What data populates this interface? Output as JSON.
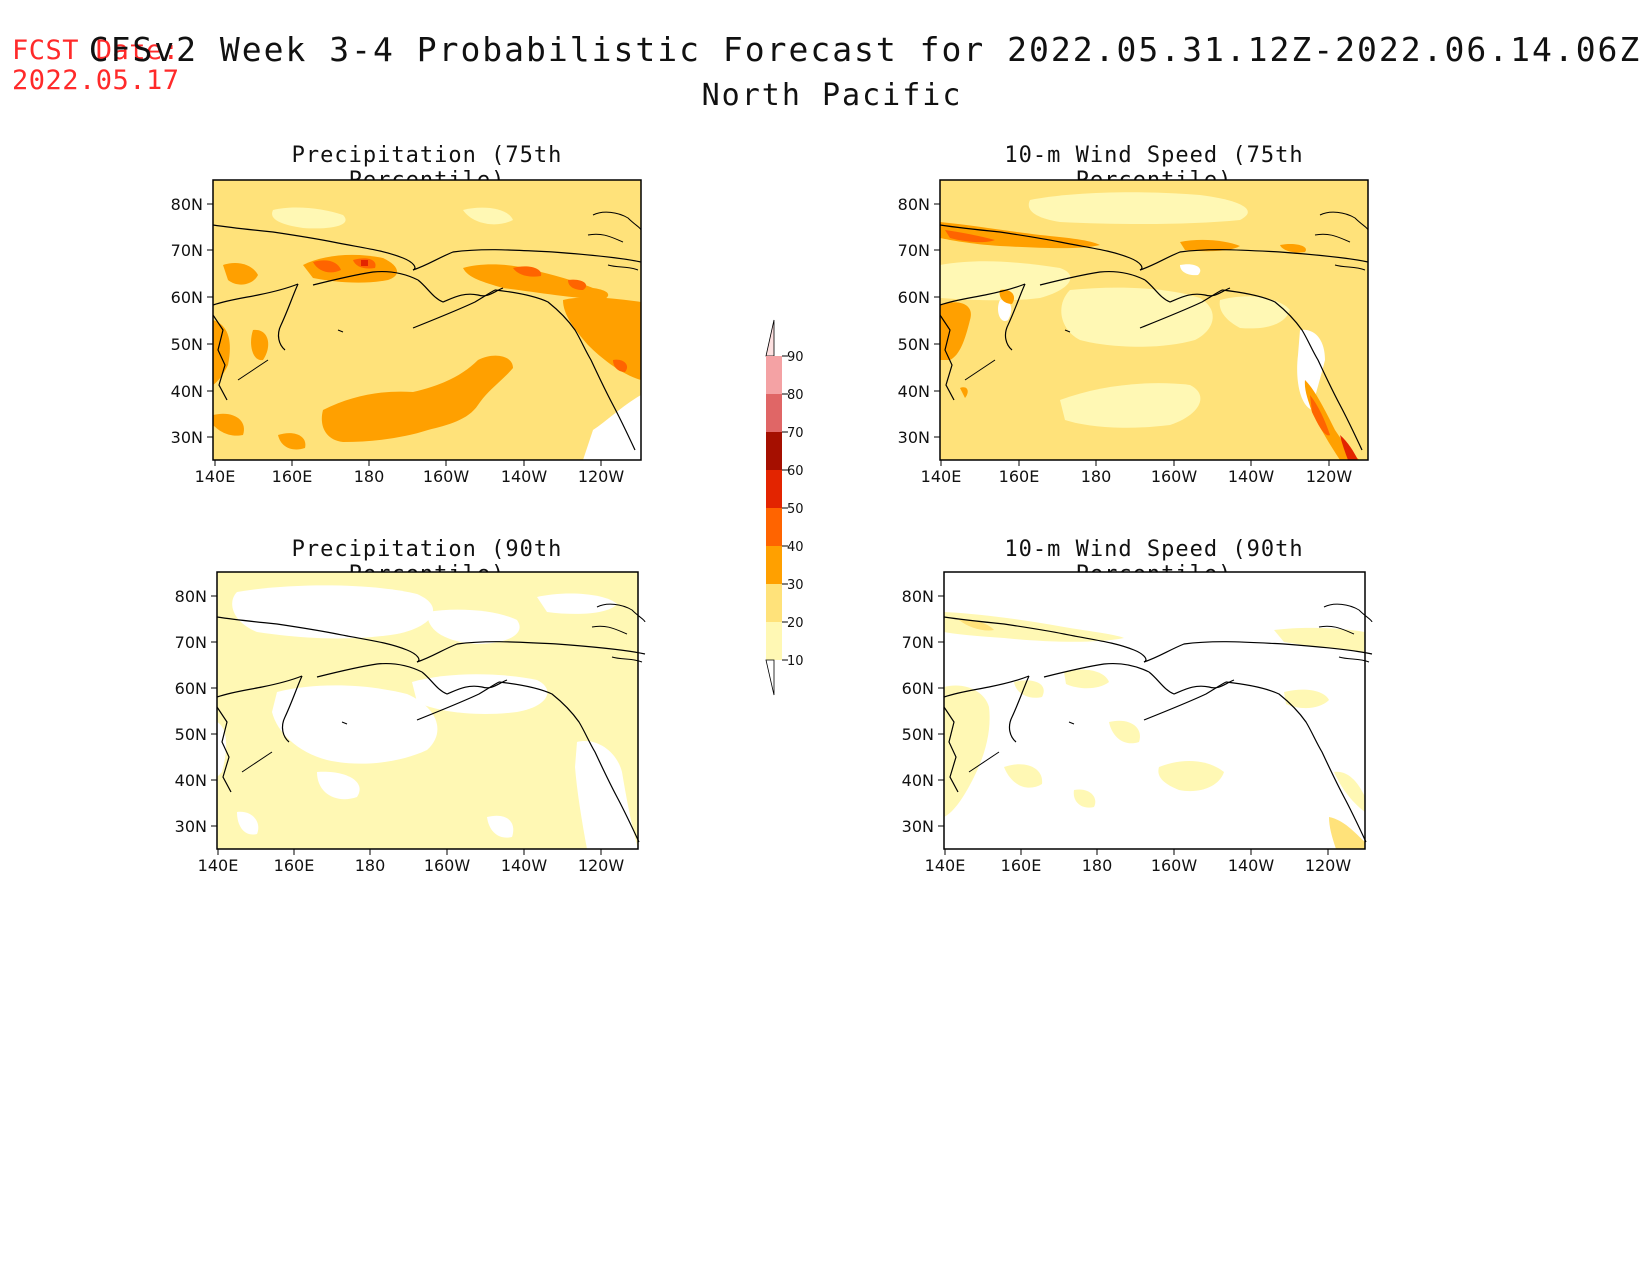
{
  "header": {
    "fcst_label": "FCST Date:",
    "fcst_date": "2022.05.17",
    "title": "CFSv2 Week 3-4 Probabilistic Forecast for 2022.05.31.12Z-2022.06.14.06Z",
    "region": "North Pacific"
  },
  "panels": [
    {
      "title": "Precipitation (75th Percentile)"
    },
    {
      "title": "10-m Wind Speed (75th Percentile)"
    },
    {
      "title": "Precipitation (90th Percentile)"
    },
    {
      "title": "10-m Wind Speed (90th Percentile)"
    }
  ],
  "axes": {
    "lat_labels": [
      "80N",
      "70N",
      "60N",
      "50N",
      "40N",
      "30N"
    ],
    "lon_labels": [
      "140E",
      "160E",
      "180",
      "160W",
      "140W",
      "120W"
    ]
  },
  "colorbar": {
    "levels": [
      "90",
      "80",
      "70",
      "60",
      "50",
      "40",
      "30",
      "20",
      "10"
    ],
    "colors": [
      "#fde0e0",
      "#f4a2a4",
      "#e06666",
      "#a50f00",
      "#e32400",
      "#ff6400",
      "#ffa000",
      "#ffe27a",
      "#fff8b4"
    ]
  },
  "palette": {
    "white": "#ffffff",
    "light_yellow": "#fff8b4",
    "yellow": "#ffe27a",
    "orange": "#ffa000",
    "dark_orange": "#ff6400",
    "red": "#e32400"
  }
}
